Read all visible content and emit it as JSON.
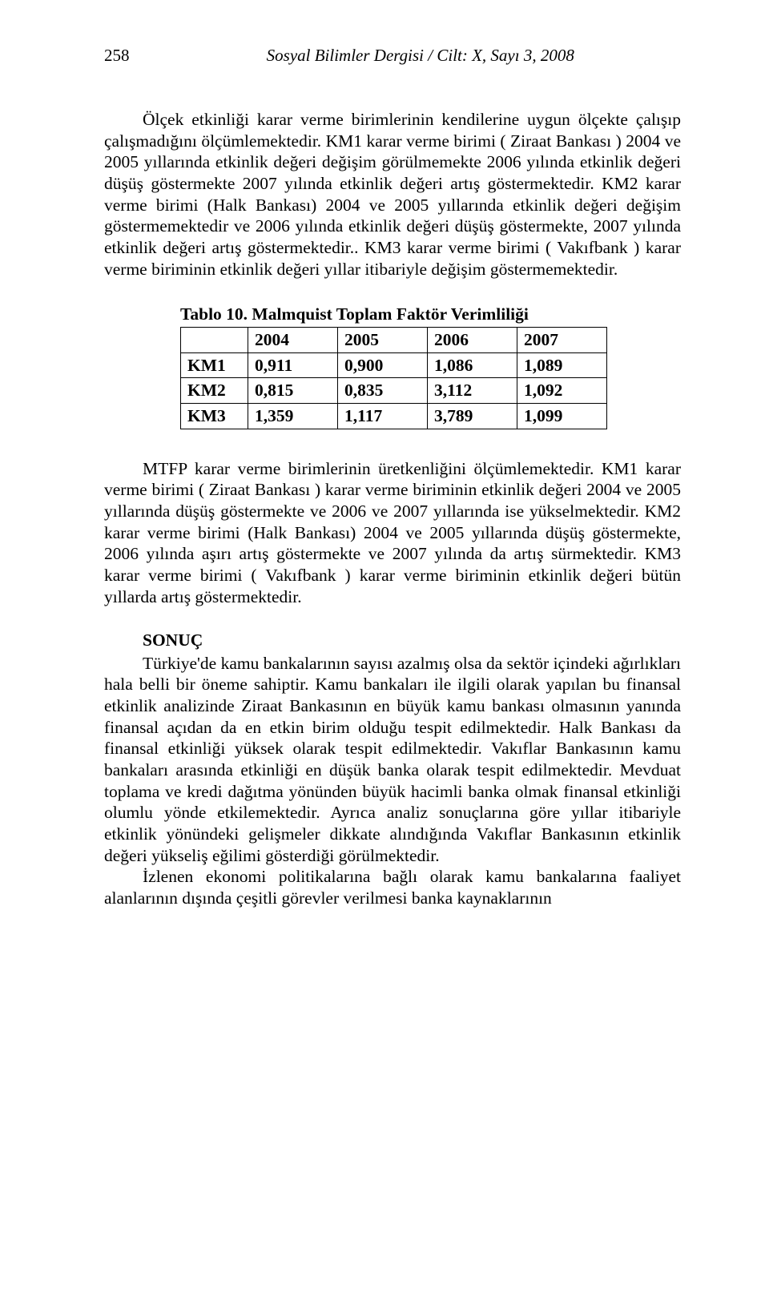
{
  "header": {
    "page_number": "258",
    "journal": "Sosyal Bilimler Dergisi / Cilt: X, Sayı 3, 2008"
  },
  "paragraphs": {
    "p1": "Ölçek etkinliği karar verme birimlerinin kendilerine uygun ölçekte çalışıp çalışmadığını ölçümlemektedir. KM1 karar verme birimi ( Ziraat Bankası ) 2004 ve 2005 yıllarında etkinlik değeri değişim görülmemekte 2006 yılında etkinlik değeri düşüş göstermekte 2007 yılında etkinlik değeri artış göstermektedir. KM2 karar verme birimi (Halk Bankası) 2004 ve 2005 yıllarında etkinlik değeri değişim göstermemektedir ve  2006 yılında etkinlik değeri düşüş göstermekte, 2007 yılında etkinlik değeri artış göstermektedir.. KM3 karar verme birimi ( Vakıfbank ) karar verme biriminin etkinlik değeri yıllar itibariyle değişim göstermemektedir.",
    "p2": "MTFP karar verme birimlerinin üretkenliğini ölçümlemektedir. KM1 karar verme birimi ( Ziraat Bankası ) karar verme biriminin etkinlik değeri 2004 ve 2005 yıllarında düşüş göstermekte ve 2006 ve 2007 yıllarında ise yükselmektedir. KM2 karar verme birimi (Halk Bankası) 2004 ve 2005 yıllarında düşüş göstermekte, 2006 yılında aşırı artış göstermekte ve 2007 yılında da artış sürmektedir. KM3  karar verme birimi ( Vakıfbank ) karar verme biriminin etkinlik değeri bütün yıllarda artış göstermektedir.",
    "sonuc_head": "SONUÇ",
    "p3": "Türkiye'de kamu bankalarının sayısı azalmış olsa da sektör içindeki ağırlıkları hala belli bir öneme sahiptir. Kamu bankaları ile ilgili olarak yapılan bu finansal etkinlik analizinde Ziraat Bankasının en büyük kamu bankası olmasının yanında finansal açıdan da en etkin birim olduğu tespit edilmektedir. Halk Bankası da finansal etkinliği yüksek olarak tespit edilmektedir. Vakıflar Bankasının kamu bankaları arasında etkinliği en düşük banka olarak tespit edilmektedir. Mevduat toplama ve kredi dağıtma yönünden büyük hacimli banka olmak finansal etkinliği olumlu yönde etkilemektedir. Ayrıca analiz sonuçlarına göre yıllar itibariyle etkinlik yönündeki gelişmeler dikkate alındığında Vakıflar Bankasının etkinlik değeri yükseliş eğilimi gösterdiği görülmektedir.",
    "p4": "İzlenen ekonomi politikalarına bağlı olarak kamu bankalarına faaliyet alanlarının dışında çeşitli görevler verilmesi banka kaynaklarının"
  },
  "table": {
    "title": "Tablo 10. Malmquist Toplam Faktör Verimliliği",
    "columns": [
      "",
      "2004",
      "2005",
      "2006",
      "2007"
    ],
    "rows": [
      [
        "KM1",
        "0,911",
        "0,900",
        "1,086",
        "1,089"
      ],
      [
        "KM2",
        "0,815",
        "0,835",
        "3,112",
        "1,092"
      ],
      [
        "KM3",
        "1,359",
        "1,117",
        "3,789",
        "1,099"
      ]
    ],
    "border_color": "#000000",
    "font_weight": "bold"
  },
  "colors": {
    "text": "#000000",
    "background": "#ffffff"
  },
  "typography": {
    "body_fontsize_pt": 16,
    "font_family": "Times New Roman"
  }
}
